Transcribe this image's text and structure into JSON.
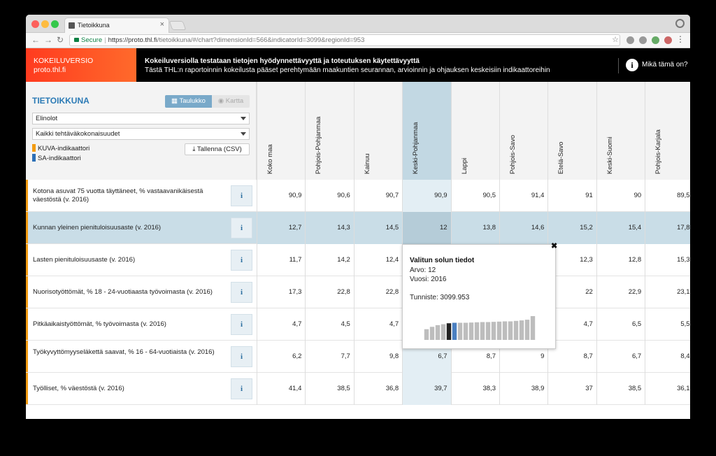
{
  "browser": {
    "tab_title": "Tietoikkuna",
    "secure_label": "Secure",
    "url_host": "https://proto.thl.fi",
    "url_path": "/tietoikkuna/#/chart?dimensionId=566&indicatorId=3099&regionId=953"
  },
  "header": {
    "brand_line1": "KOKEILUVERSIO",
    "brand_line2": "proto.thl.fi",
    "headline": "Kokeiluversiolla testataan tietojen hyödynnettävyyttä ja toteutuksen käytettävyyttä",
    "subline": "Tästä THL:n raportoinnin kokeilusta pääset perehtymään maakuntien seurannan, arvioinnin ja ohjauksen keskeisiin indikaattoreihin",
    "info_label": "Mikä tämä on?"
  },
  "panel": {
    "title": "TIETOIKKUNA",
    "view_table": "Taulukko",
    "view_map": "Kartta",
    "select_theme": "Elinolot",
    "select_scope": "Kaikki tehtäväkokonaisuudet",
    "legend_kuva": "KUVA-indikaattori",
    "legend_sa": "SA-indikaattori",
    "csv_button": "Tallenna (CSV)",
    "colors": {
      "kuva": "#f39c12",
      "sa": "#2c6fb6"
    }
  },
  "columns": [
    "Koko maa",
    "Pohjois-Pohjanmaa",
    "Kainuu",
    "Keski-Pohjanmaa",
    "Lappi",
    "Pohjois-Savo",
    "Etelä-Savo",
    "Keski-Suomi",
    "Pohjois-Karjala"
  ],
  "selected_column": "Keski-Pohjanmaa",
  "rows": [
    {
      "label": "Kotona asuvat 75 vuotta täyttäneet, % vastaavanikäisestä väestöstä (v. 2016)",
      "values": [
        "90,9",
        "90,6",
        "90,7",
        "90,9",
        "90,5",
        "91,4",
        "91",
        "90",
        "89,5"
      ]
    },
    {
      "label": "Kunnan yleinen pienituloisuusaste (v. 2016)",
      "values": [
        "12,7",
        "14,3",
        "14,5",
        "12",
        "13,8",
        "14,6",
        "15,2",
        "15,4",
        "17,8"
      ]
    },
    {
      "label": "Lasten pienituloisuusaste (v. 2016)",
      "values": [
        "11,7",
        "14,2",
        "12,4",
        "",
        "",
        "",
        "12,3",
        "12,8",
        "15,3"
      ]
    },
    {
      "label": "Nuorisotyöttömät, % 18 - 24-vuotiaasta työvoimasta (v. 2016)",
      "values": [
        "17,3",
        "22,8",
        "22,8",
        "",
        "",
        "",
        "22",
        "22,9",
        "23,1"
      ]
    },
    {
      "label": "Pitkäaikaistyöttömät, % työvoimasta (v. 2016)",
      "values": [
        "4,7",
        "4,5",
        "4,7",
        "",
        "",
        "",
        "4,7",
        "6,5",
        "5,5"
      ]
    },
    {
      "label": "Työkyvyttömyyseläkettä saavat, % 16 - 64-vuotiaista (v. 2016)",
      "values": [
        "6,2",
        "7,7",
        "9,8",
        "6,7",
        "8,7",
        "9",
        "8,7",
        "6,7",
        "8,4"
      ]
    },
    {
      "label": "Työlliset, % väestöstä (v. 2016)",
      "values": [
        "41,4",
        "38,5",
        "36,8",
        "39,7",
        "38,3",
        "38,9",
        "37",
        "38,5",
        "36,1"
      ]
    }
  ],
  "popup": {
    "title": "Valitun solun tiedot",
    "value_line": "Arvo: 12",
    "year_line": "Vuosi: 2016",
    "id_line": "Tunniste: 3099.953",
    "close": "✖",
    "sparkline_levels": [
      0.45,
      0.55,
      0.62,
      0.66,
      0.7,
      0.72,
      0.72,
      0.72,
      0.73,
      0.74,
      0.75,
      0.75,
      0.76,
      0.77,
      0.78,
      0.78,
      0.8,
      0.82,
      0.85,
      1.0
    ],
    "highlight_dark_index": 4,
    "highlight_blue_index": 5
  }
}
